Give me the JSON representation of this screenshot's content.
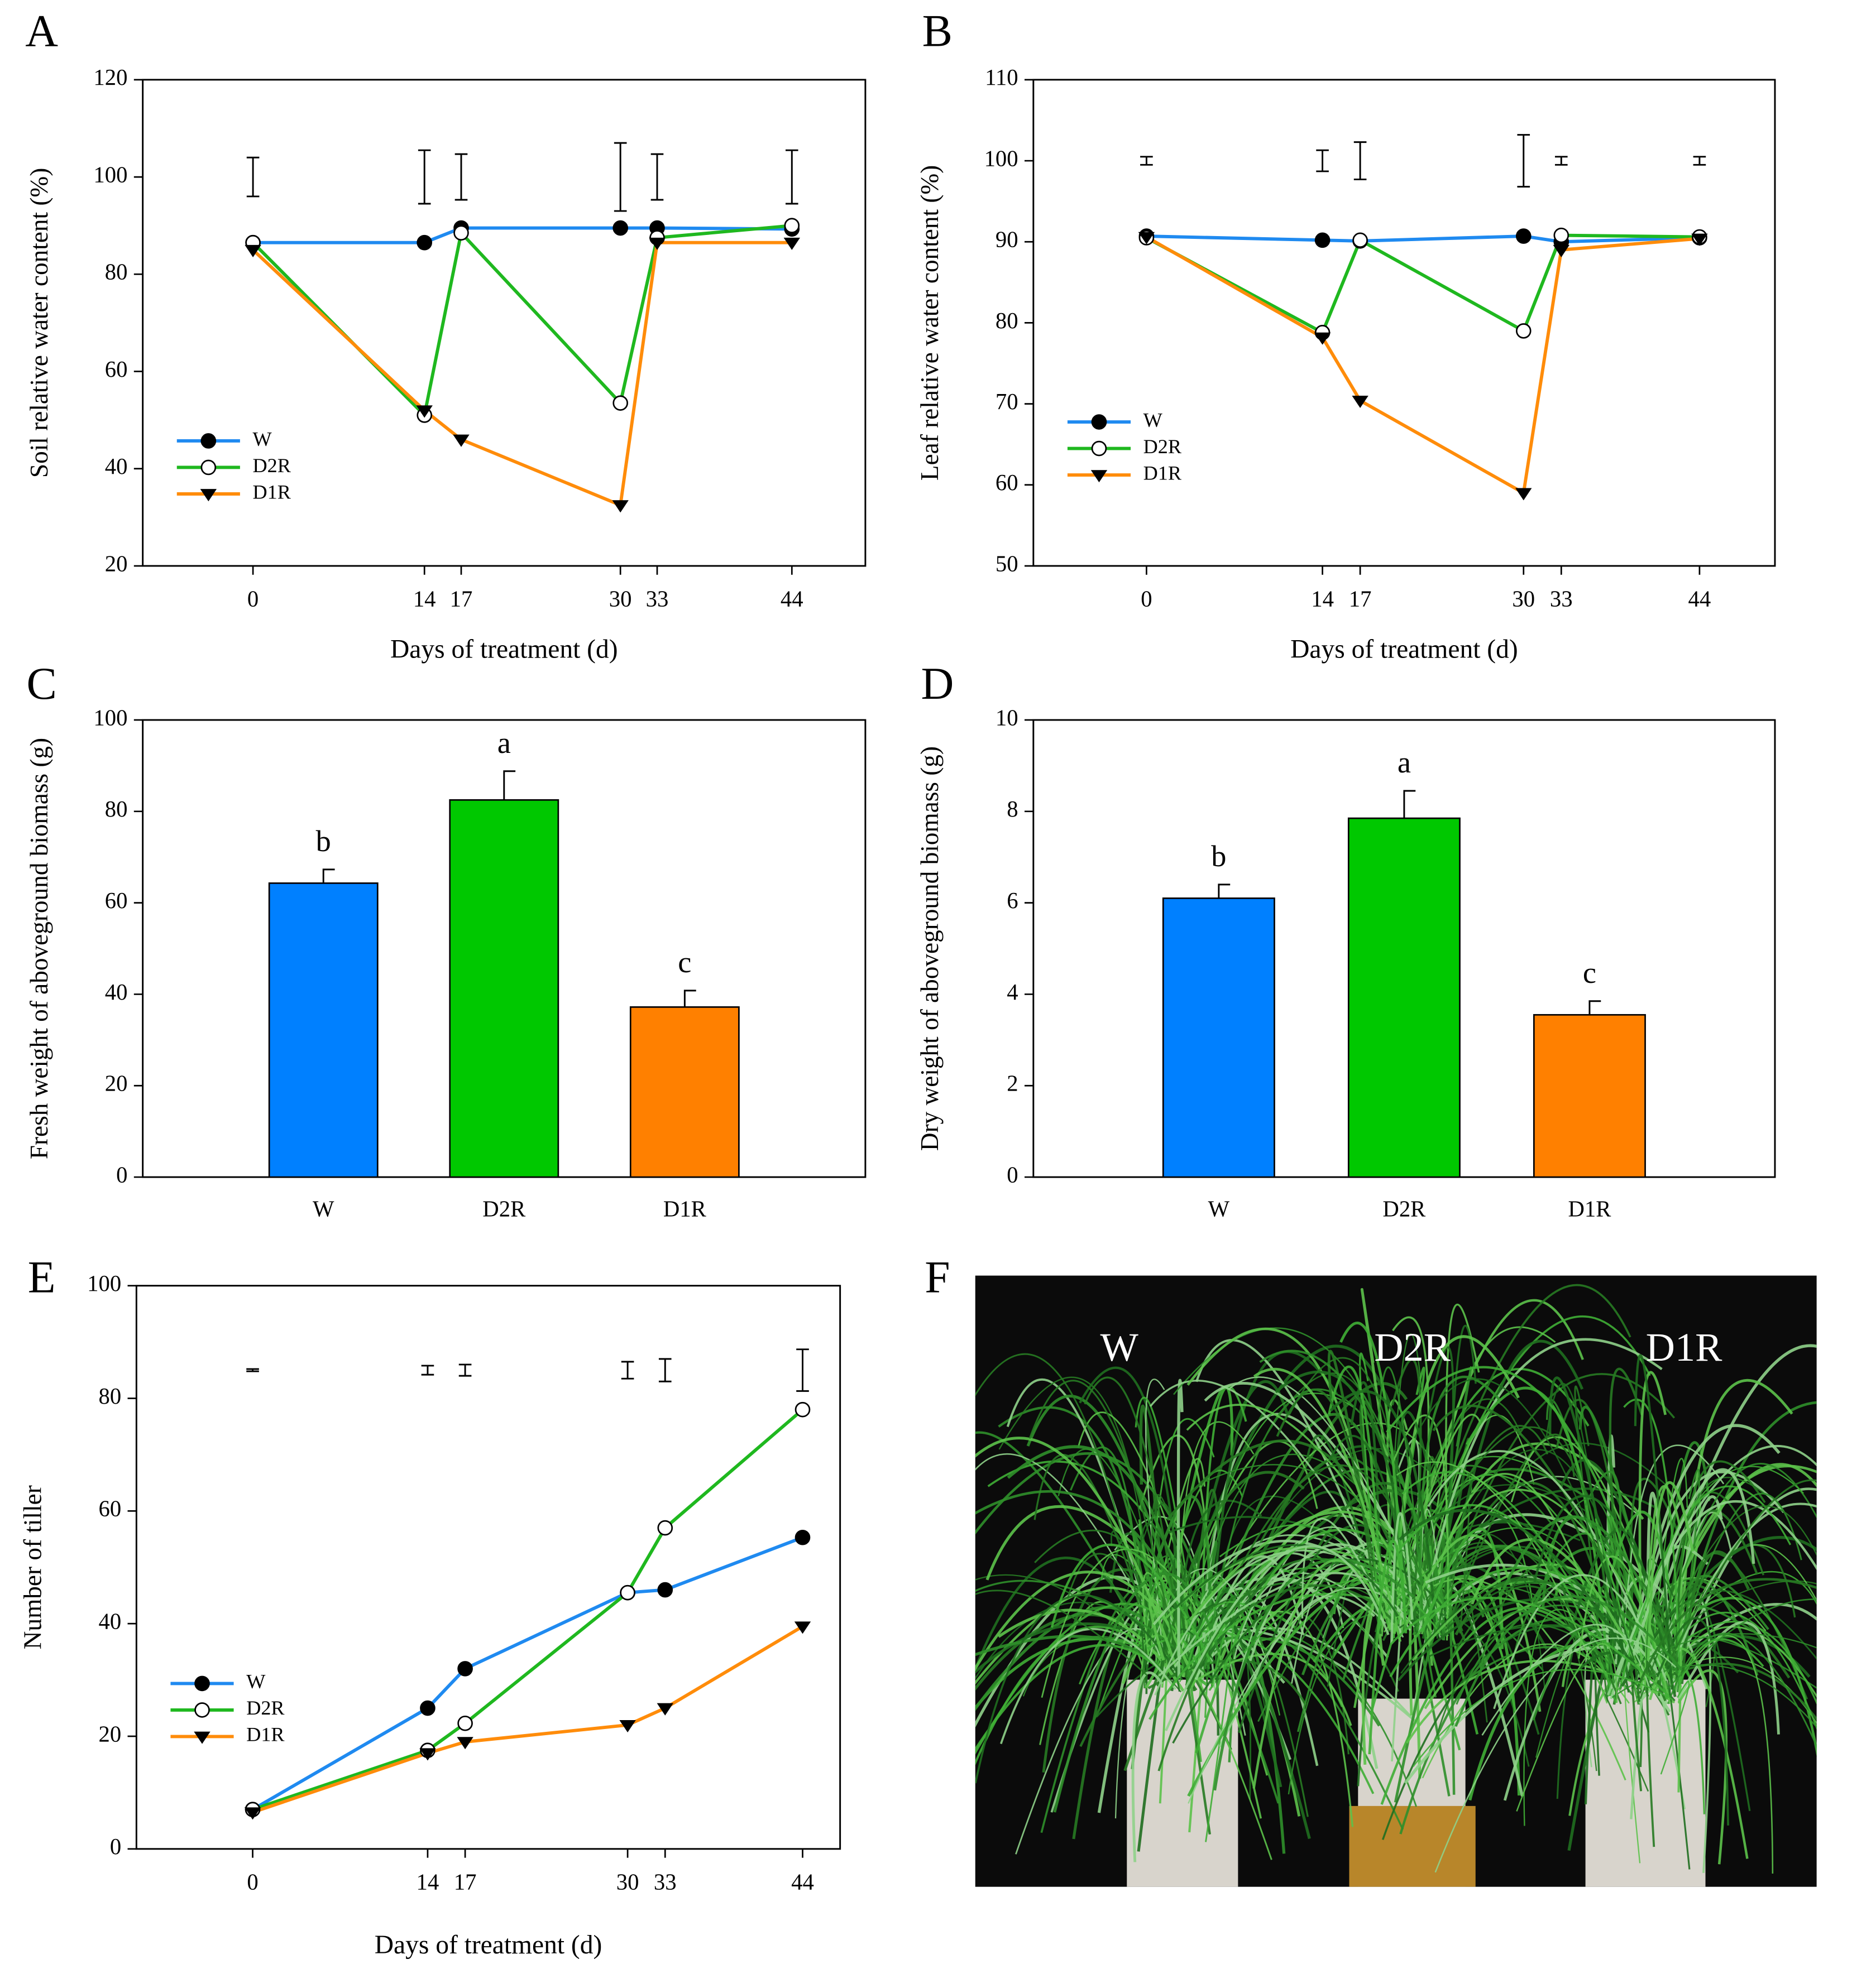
{
  "chart_data": [
    {
      "panel": "A",
      "type": "line",
      "xlabel": "Days of treatment (d)",
      "ylabel": "Soil relative water content (%)",
      "x": [
        0,
        14,
        17,
        30,
        33,
        44
      ],
      "xlim": [
        -9,
        50
      ],
      "xticks": [
        0,
        14,
        17,
        30,
        33,
        44
      ],
      "ylim": [
        20,
        120
      ],
      "yticks": [
        20,
        40,
        60,
        80,
        100,
        120
      ],
      "legend": "lower left",
      "series": [
        {
          "name": "W",
          "color": "#1f8af0",
          "marker": "circle-filled",
          "values": [
            86.5,
            86.5,
            89.5,
            89.5,
            89.5,
            89.3
          ]
        },
        {
          "name": "D2R",
          "color": "#1fb81f",
          "marker": "circle-open",
          "values": [
            86.5,
            51,
            88.5,
            53.5,
            87.5,
            90
          ]
        },
        {
          "name": "D1R",
          "color": "#ff8c0a",
          "marker": "triangle-down",
          "values": [
            85,
            52,
            46,
            32.5,
            86.5,
            86.5
          ]
        }
      ],
      "error_bars": {
        "y": [
          100,
          100,
          100,
          100,
          100,
          100
        ],
        "err": [
          4,
          5.5,
          4.7,
          7,
          4.7,
          5.5
        ]
      }
    },
    {
      "panel": "B",
      "type": "line",
      "xlabel": "Days of treatment (d)",
      "ylabel": "Leaf relative water content (%)",
      "x": [
        0,
        14,
        17,
        30,
        33,
        44
      ],
      "xlim": [
        -9,
        50
      ],
      "xticks": [
        0,
        14,
        17,
        30,
        33,
        44
      ],
      "ylim": [
        50,
        110
      ],
      "yticks": [
        50,
        60,
        70,
        80,
        90,
        100,
        110
      ],
      "legend": "lower left",
      "series": [
        {
          "name": "W",
          "color": "#1f8af0",
          "marker": "circle-filled",
          "values": [
            90.7,
            90.2,
            90.1,
            90.7,
            90,
            90.5
          ]
        },
        {
          "name": "D2R",
          "color": "#1fb81f",
          "marker": "circle-open",
          "values": [
            90.5,
            78.8,
            90.2,
            79,
            90.8,
            90.6
          ]
        },
        {
          "name": "D1R",
          "color": "#ff8c0a",
          "marker": "triangle-down",
          "values": [
            90.6,
            78.2,
            70.4,
            59,
            89,
            90.4
          ]
        }
      ],
      "error_bars": {
        "y": [
          100,
          100,
          100,
          100,
          100,
          100
        ],
        "err": [
          0.5,
          1.3,
          2.3,
          3.2,
          0.5,
          0.5
        ]
      }
    },
    {
      "panel": "C",
      "type": "bar",
      "ylabel": "Fresh weight of aboveground biomass (g)",
      "categories": [
        "W",
        "D2R",
        "D1R"
      ],
      "values": [
        64.3,
        82.5,
        37.2
      ],
      "errors": [
        3,
        6.3,
        3.6
      ],
      "annotations": [
        "b",
        "a",
        "c"
      ],
      "colors": [
        "#0080ff",
        "#00c800",
        "#ff8000"
      ],
      "ylim": [
        0,
        100
      ],
      "yticks": [
        0,
        20,
        40,
        60,
        80,
        100
      ]
    },
    {
      "panel": "D",
      "type": "bar",
      "ylabel": "Dry weight of aboveground biomass (g)",
      "categories": [
        "W",
        "D2R",
        "D1R"
      ],
      "values": [
        6.1,
        7.85,
        3.55
      ],
      "errors": [
        0.3,
        0.6,
        0.3
      ],
      "annotations": [
        "b",
        "a",
        "c"
      ],
      "colors": [
        "#0080ff",
        "#00c800",
        "#ff8000"
      ],
      "ylim": [
        0,
        10
      ],
      "yticks": [
        0,
        2,
        4,
        6,
        8,
        10
      ]
    },
    {
      "panel": "E",
      "type": "line",
      "xlabel": "Days of treatment (d)",
      "ylabel": "Number of tiller",
      "x": [
        0,
        14,
        17,
        30,
        33,
        44
      ],
      "xlim": [
        -9.3,
        47
      ],
      "xticks": [
        0,
        14,
        17,
        30,
        33,
        44
      ],
      "ylim": [
        0,
        100
      ],
      "yticks": [
        0,
        20,
        40,
        60,
        80,
        100
      ],
      "legend": "lower left",
      "series": [
        {
          "name": "W",
          "color": "#1f8af0",
          "marker": "circle-filled",
          "values": [
            7,
            25,
            32,
            45.5,
            46,
            55.3
          ]
        },
        {
          "name": "D2R",
          "color": "#1fb81f",
          "marker": "circle-open",
          "values": [
            7,
            17.5,
            22.3,
            45.5,
            57,
            78
          ]
        },
        {
          "name": "D1R",
          "color": "#ff8c0a",
          "marker": "triangle-down",
          "values": [
            6.5,
            17,
            19,
            22,
            25,
            39.5
          ]
        }
      ],
      "error_bars": {
        "y": [
          85,
          85,
          85,
          85,
          85,
          85
        ],
        "err": [
          0.2,
          0.8,
          1,
          1.5,
          2,
          3.7
        ]
      }
    }
  ],
  "photo": {
    "panel": "F",
    "labels": [
      "W",
      "D2R",
      "D1R"
    ]
  }
}
